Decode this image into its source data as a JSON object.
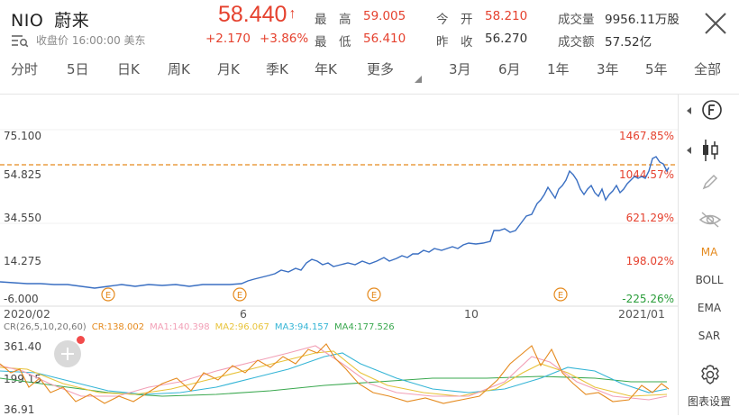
{
  "header": {
    "ticker": "NIO",
    "name": "蔚来",
    "status": "收盘价 16:00:00 美东",
    "price": "58.440",
    "price_arrow": "↑",
    "change": "+2.170",
    "change_pct": "+3.86%",
    "high_label": "最　高",
    "high_value": "59.005",
    "low_label": "最　低",
    "low_value": "56.410",
    "open_label": "今　开",
    "open_value": "58.210",
    "prev_label": "昨　收",
    "prev_value": "56.270",
    "volume_label": "成交量",
    "volume_value": "9956.11万股",
    "turnover_label": "成交额",
    "turnover_value": "57.52亿"
  },
  "periods": [
    "分时",
    "5日",
    "日K",
    "周K",
    "月K",
    "季K",
    "年K",
    "更多",
    "3月",
    "6月",
    "1年",
    "3年",
    "5年",
    "全部"
  ],
  "main_chart": {
    "left_axis": [
      "75.100",
      "54.825",
      "34.550",
      "14.275",
      "-6.000"
    ],
    "right_axis": [
      "1467.85%",
      "1044.57%",
      "621.29%",
      "198.02%",
      "-225.26%"
    ],
    "x_labels": [
      "2020/02",
      "6",
      "10",
      "2021/01"
    ],
    "event_marker": "E",
    "event_marker_name": "earnings-marker-icon"
  },
  "indicator": {
    "label": "CR(26,5,10,20,60)",
    "cr": "CR:138.002",
    "ma1": "MA1:140.398",
    "ma2": "MA2:96.067",
    "ma3": "MA3:94.157",
    "ma4": "MA4:177.526",
    "axis": [
      "361.40",
      "199.15",
      "36.91"
    ]
  },
  "sidebar": {
    "items": [
      "MA",
      "BOLL",
      "EMA",
      "SAR"
    ],
    "settings_label": "图表设置",
    "icons": [
      "f-circle-icon",
      "candlestick-icon",
      "pencil-icon",
      "eye-slash-icon",
      "gear-icon"
    ]
  },
  "colors": {
    "up": "#e5412e",
    "down": "#2a9d3a",
    "line": "#3a6fc2",
    "guide": "#e58a1e",
    "cr": "#e58a1e",
    "ma1": "#f29fb6",
    "ma2": "#e8c33a",
    "ma3": "#35b5d6",
    "ma4": "#3aa84f"
  },
  "chart_data": {
    "type": "line",
    "title": "",
    "xlabel": "",
    "ylabel": "",
    "ylim": [
      -6.0,
      75.1
    ],
    "x": [
      "2020/02",
      "",
      "",
      "",
      "6",
      "",
      "",
      "",
      "10",
      "",
      "",
      "2021/01",
      ""
    ],
    "series": [
      {
        "name": "",
        "values": [
          3.5,
          2.9,
          2.1,
          3.0,
          4.5,
          13.5,
          16.5,
          22.0,
          20.0,
          28.0,
          53.0,
          48.0,
          58.4
        ]
      }
    ]
  }
}
